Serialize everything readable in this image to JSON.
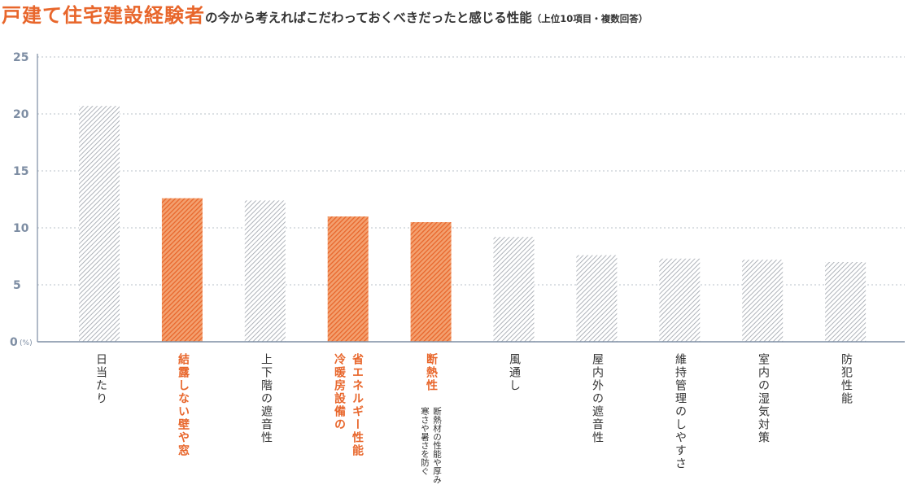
{
  "title": {
    "main": "戸建て住宅建設経験者",
    "sub": "の今から考えればこだわっておくべきだったと感じる性能",
    "note": "（上位10項目・複数回答）"
  },
  "colors": {
    "highlight": "#e8662b",
    "normal_hatch": "#9aa0a8",
    "axis": "#7d8da3"
  },
  "chart_data": {
    "type": "bar",
    "unit": "(%)",
    "ylim": [
      0,
      25
    ],
    "yticks": [
      0,
      5,
      10,
      15,
      20,
      25
    ],
    "grid": true,
    "categories": [
      "日当たり",
      "結露しない壁や窓",
      "上下階の遮音性",
      "省エネルギー性能 冷暖房設備の",
      "断熱性",
      "風通し",
      "屋内外の遮音性",
      "維持管理のしやすさ",
      "室内の湿気対策",
      "防犯性能"
    ],
    "values": [
      20.7,
      12.6,
      12.4,
      11.0,
      10.5,
      9.2,
      7.6,
      7.3,
      7.2,
      7.0
    ],
    "highlighted": [
      false,
      true,
      false,
      true,
      true,
      false,
      false,
      false,
      false,
      false
    ],
    "annotations": [
      {
        "category": "断熱性",
        "text": "断熱材の性能や厚み 寒さや暑さを防ぐ"
      }
    ]
  },
  "labels": {
    "cat0": "日当たり",
    "cat1": "結露しない壁や窓",
    "cat2": "上下階の遮音性",
    "cat3a": "省エネルギー性能",
    "cat3b": "冷暖房設備の",
    "cat4": "断熱性",
    "cat4_note_a": "断熱材の性能や厚み",
    "cat4_note_b": "寒さや暑さを防ぐ",
    "cat5": "風通し",
    "cat6": "屋内外の遮音性",
    "cat7": "維持管理のしやすさ",
    "cat8": "室内の湿気対策",
    "cat9": "防犯性能"
  }
}
